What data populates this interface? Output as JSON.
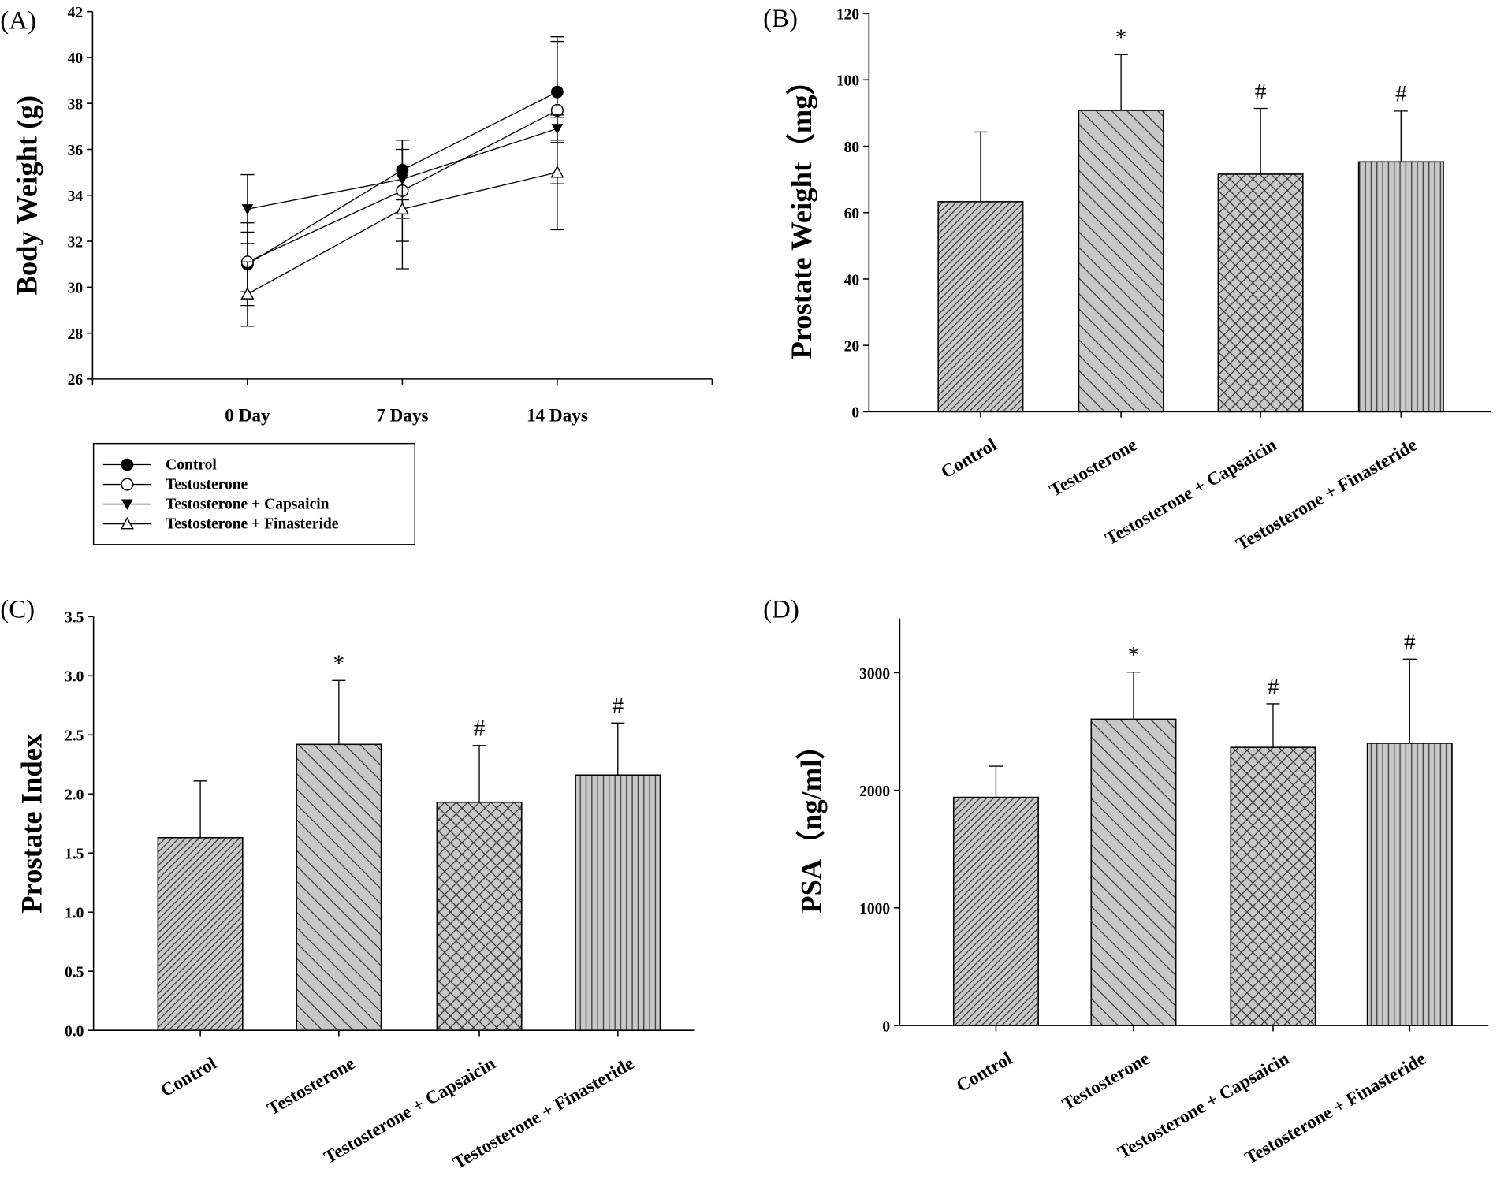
{
  "chart_data": [
    {
      "type": "line",
      "panel_label": "(A)",
      "title": "",
      "xlabel": "",
      "ylabel": "Body Weight (g)",
      "categories": [
        "0 Day",
        "7 Days",
        "14 Days"
      ],
      "ylim": [
        26,
        42
      ],
      "yticks": [
        26,
        28,
        30,
        32,
        34,
        36,
        38,
        40,
        42
      ],
      "legend_position": "below",
      "series": [
        {
          "name": "Control",
          "marker": "filled-circle",
          "values": [
            31.0,
            35.1,
            38.5
          ],
          "errors": [
            1.8,
            1.3,
            2.2
          ]
        },
        {
          "name": "Testosterone",
          "marker": "open-circle",
          "values": [
            31.1,
            34.2,
            37.7
          ],
          "errors": [
            1.3,
            2.2,
            3.2
          ]
        },
        {
          "name": "Testosterone + Capsaicin",
          "marker": "filled-triangle-down",
          "values": [
            33.4,
            34.7,
            36.9
          ],
          "errors": [
            1.5,
            1.7,
            0.5
          ]
        },
        {
          "name": "Testosterone + Finasteride",
          "marker": "open-triangle-up",
          "values": [
            29.7,
            33.4,
            35.0
          ],
          "errors": [
            1.4,
            2.6,
            2.5
          ]
        }
      ]
    },
    {
      "type": "bar",
      "panel_label": "(B)",
      "ylabel": "Prostate Weight（mg）",
      "categories": [
        "Control",
        "Testosterone",
        "Testosterone + Capsaicin",
        "Testosterone + Finasteride"
      ],
      "values": [
        63.3,
        90.8,
        71.6,
        75.3
      ],
      "errors": [
        21.0,
        16.8,
        19.8,
        15.3
      ],
      "significance": [
        "",
        "*",
        "#",
        "#"
      ],
      "ylim": [
        0,
        120
      ],
      "yticks": [
        0,
        20,
        40,
        60,
        80,
        100,
        120
      ],
      "patterns": [
        "dense-diag-right",
        "diag-left",
        "crosshatch",
        "vertical"
      ]
    },
    {
      "type": "bar",
      "panel_label": "(C)",
      "ylabel": "Prostate Index",
      "categories": [
        "Control",
        "Testosterone",
        "Testosterone + Capsaicin",
        "Testosterone + Finasteride"
      ],
      "values": [
        1.63,
        2.42,
        1.93,
        2.16
      ],
      "errors": [
        0.48,
        0.54,
        0.48,
        0.44
      ],
      "significance": [
        "",
        "*",
        "#",
        "#"
      ],
      "ylim": [
        0,
        3.5
      ],
      "yticks": [
        "0.0",
        "0.5",
        "1.0",
        "1.5",
        "2.0",
        "2.5",
        "3.0",
        "3.5"
      ],
      "patterns": [
        "dense-diag-right",
        "diag-left",
        "crosshatch",
        "vertical"
      ]
    },
    {
      "type": "bar",
      "panel_label": "(D)",
      "ylabel": "PSA（ng/ml）",
      "categories": [
        "Control",
        "Testosterone",
        "Testosterone + Capsaicin",
        "Testosterone + Finasteride"
      ],
      "values": [
        1940,
        2605,
        2365,
        2400
      ],
      "errors": [
        265,
        400,
        370,
        715
      ],
      "significance": [
        "",
        "*",
        "#",
        "#"
      ],
      "ylim": [
        0,
        3460
      ],
      "yticks": [
        0,
        1000,
        2000,
        3000
      ],
      "patterns": [
        "dense-diag-right",
        "diag-left",
        "crosshatch",
        "vertical"
      ]
    }
  ]
}
